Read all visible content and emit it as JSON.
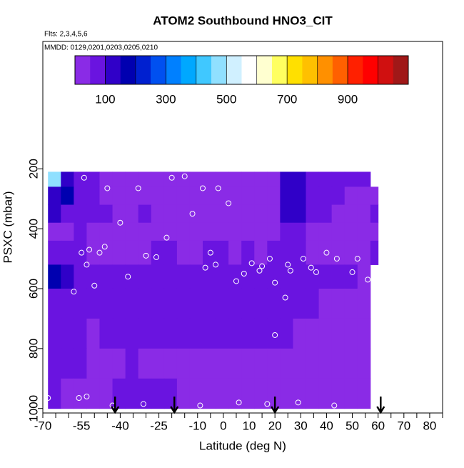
{
  "chart_data": {
    "type": "heatmap",
    "title": "ATOM2 Southbound HNO3_CIT",
    "subtitle": "Flts: 2,3,4,5,6",
    "annotation": "MMDD: 0129,0201,0203,0205,0210",
    "xlabel": "Latitude (deg N)",
    "ylabel": "PSXC (mbar)",
    "xlim": [
      -70,
      85
    ],
    "ylim": [
      1015,
      -225
    ],
    "xticks": [
      -70,
      -55,
      -40,
      -25,
      -10,
      0,
      10,
      20,
      30,
      40,
      50,
      60,
      70,
      80
    ],
    "xminor_ticks": [
      -65,
      -60,
      -50,
      -45,
      -35,
      -30,
      -20,
      -15,
      -5,
      5,
      15,
      25,
      35,
      45,
      55,
      65,
      75,
      85
    ],
    "yticks": [
      200,
      400,
      600,
      800,
      1000
    ],
    "zlim": [
      0,
      1100
    ],
    "zticks": [
      100,
      300,
      500,
      700,
      900
    ],
    "colorscale": [
      "#8a2be6",
      "#6a14e0",
      "#3000c8",
      "#0000b0",
      "#0020d0",
      "#0050f0",
      "#0080ff",
      "#00a8ff",
      "#40c8ff",
      "#90e0ff",
      "#d0f0ff",
      "#ffffff",
      "#ffffd0",
      "#ffff60",
      "#ffe000",
      "#ffc000",
      "#ff9000",
      "#ff6000",
      "#ff2000",
      "#ff0000",
      "#d01010",
      "#a01818"
    ],
    "lat_edges": [
      -68,
      -63,
      -58,
      -53,
      -48,
      -43,
      -38,
      -33,
      -28,
      -23,
      -18,
      -13,
      -8,
      -3,
      2,
      7,
      12,
      17,
      22,
      27,
      32,
      37,
      42,
      47,
      52,
      57,
      60
    ],
    "p_edges": [
      210,
      260,
      320,
      380,
      440,
      520,
      600,
      700,
      800,
      900,
      1000
    ],
    "z": [
      [
        450,
        120,
        60,
        80,
        40,
        35,
        35,
        40,
        40,
        35,
        35,
        40,
        40,
        45,
        40,
        40,
        45,
        45,
        110,
        100,
        60,
        80,
        60,
        50,
        50,
        null
      ],
      [
        130,
        150,
        90,
        70,
        45,
        40,
        40,
        40,
        45,
        40,
        45,
        45,
        45,
        45,
        45,
        40,
        40,
        45,
        140,
        120,
        70,
        60,
        50,
        45,
        40,
        45
      ],
      [
        100,
        80,
        70,
        60,
        50,
        45,
        45,
        50,
        45,
        40,
        40,
        40,
        40,
        40,
        40,
        40,
        40,
        45,
        120,
        100,
        60,
        50,
        45,
        40,
        40,
        50
      ],
      [
        40,
        45,
        50,
        40,
        40,
        40,
        40,
        45,
        40,
        45,
        40,
        40,
        40,
        45,
        40,
        40,
        45,
        40,
        80,
        60,
        45,
        40,
        40,
        40,
        45,
        45
      ],
      [
        50,
        70,
        60,
        45,
        45,
        45,
        45,
        45,
        50,
        50,
        45,
        45,
        50,
        50,
        45,
        50,
        45,
        50,
        60,
        55,
        45,
        45,
        45,
        40,
        45,
        50
      ],
      [
        150,
        120,
        90,
        70,
        60,
        60,
        55,
        55,
        60,
        60,
        55,
        55,
        60,
        60,
        65,
        60,
        60,
        70,
        70,
        60,
        55,
        50,
        50,
        50,
        45,
        null
      ],
      [
        90,
        80,
        70,
        60,
        55,
        55,
        60,
        60,
        60,
        70,
        75,
        80,
        85,
        80,
        75,
        70,
        65,
        60,
        60,
        55,
        50,
        45,
        45,
        40,
        40,
        null
      ],
      [
        60,
        55,
        50,
        45,
        50,
        55,
        55,
        55,
        55,
        55,
        55,
        55,
        55,
        55,
        50,
        50,
        50,
        50,
        50,
        45,
        45,
        45,
        40,
        40,
        40,
        null
      ],
      [
        55,
        50,
        50,
        45,
        45,
        45,
        50,
        45,
        45,
        45,
        45,
        45,
        45,
        45,
        45,
        45,
        45,
        45,
        45,
        40,
        40,
        40,
        40,
        40,
        40,
        null
      ],
      [
        50,
        45,
        45,
        45,
        45,
        50,
        55,
        50,
        50,
        50,
        45,
        45,
        45,
        40,
        40,
        40,
        40,
        40,
        40,
        40,
        40,
        40,
        40,
        40,
        40,
        null
      ]
    ],
    "points": {
      "lat": [
        -54,
        -45,
        -33,
        -20,
        -15,
        -8,
        -2,
        2,
        -40,
        -48,
        -55,
        -52,
        -30,
        -12,
        -5,
        8,
        15,
        20,
        26,
        34,
        40,
        52,
        56,
        -58,
        -50,
        -37,
        -22,
        -3,
        11,
        18,
        25,
        31,
        44,
        -53,
        -46,
        -26,
        -7,
        5,
        14,
        24,
        36,
        50,
        -56,
        -43,
        -31,
        -9,
        6,
        17,
        29,
        43,
        -68,
        -53,
        20
      ],
      "p": [
        230,
        265,
        265,
        230,
        225,
        265,
        265,
        315,
        380,
        480,
        480,
        470,
        490,
        350,
        480,
        550,
        525,
        580,
        540,
        530,
        480,
        500,
        570,
        610,
        590,
        560,
        430,
        520,
        515,
        500,
        520,
        500,
        500,
        520,
        460,
        495,
        530,
        575,
        540,
        630,
        545,
        545,
        965,
        990,
        985,
        990,
        980,
        985,
        980,
        990,
        965,
        960,
        755
      ]
    },
    "arrows": [
      -42,
      -19,
      20,
      61
    ]
  }
}
